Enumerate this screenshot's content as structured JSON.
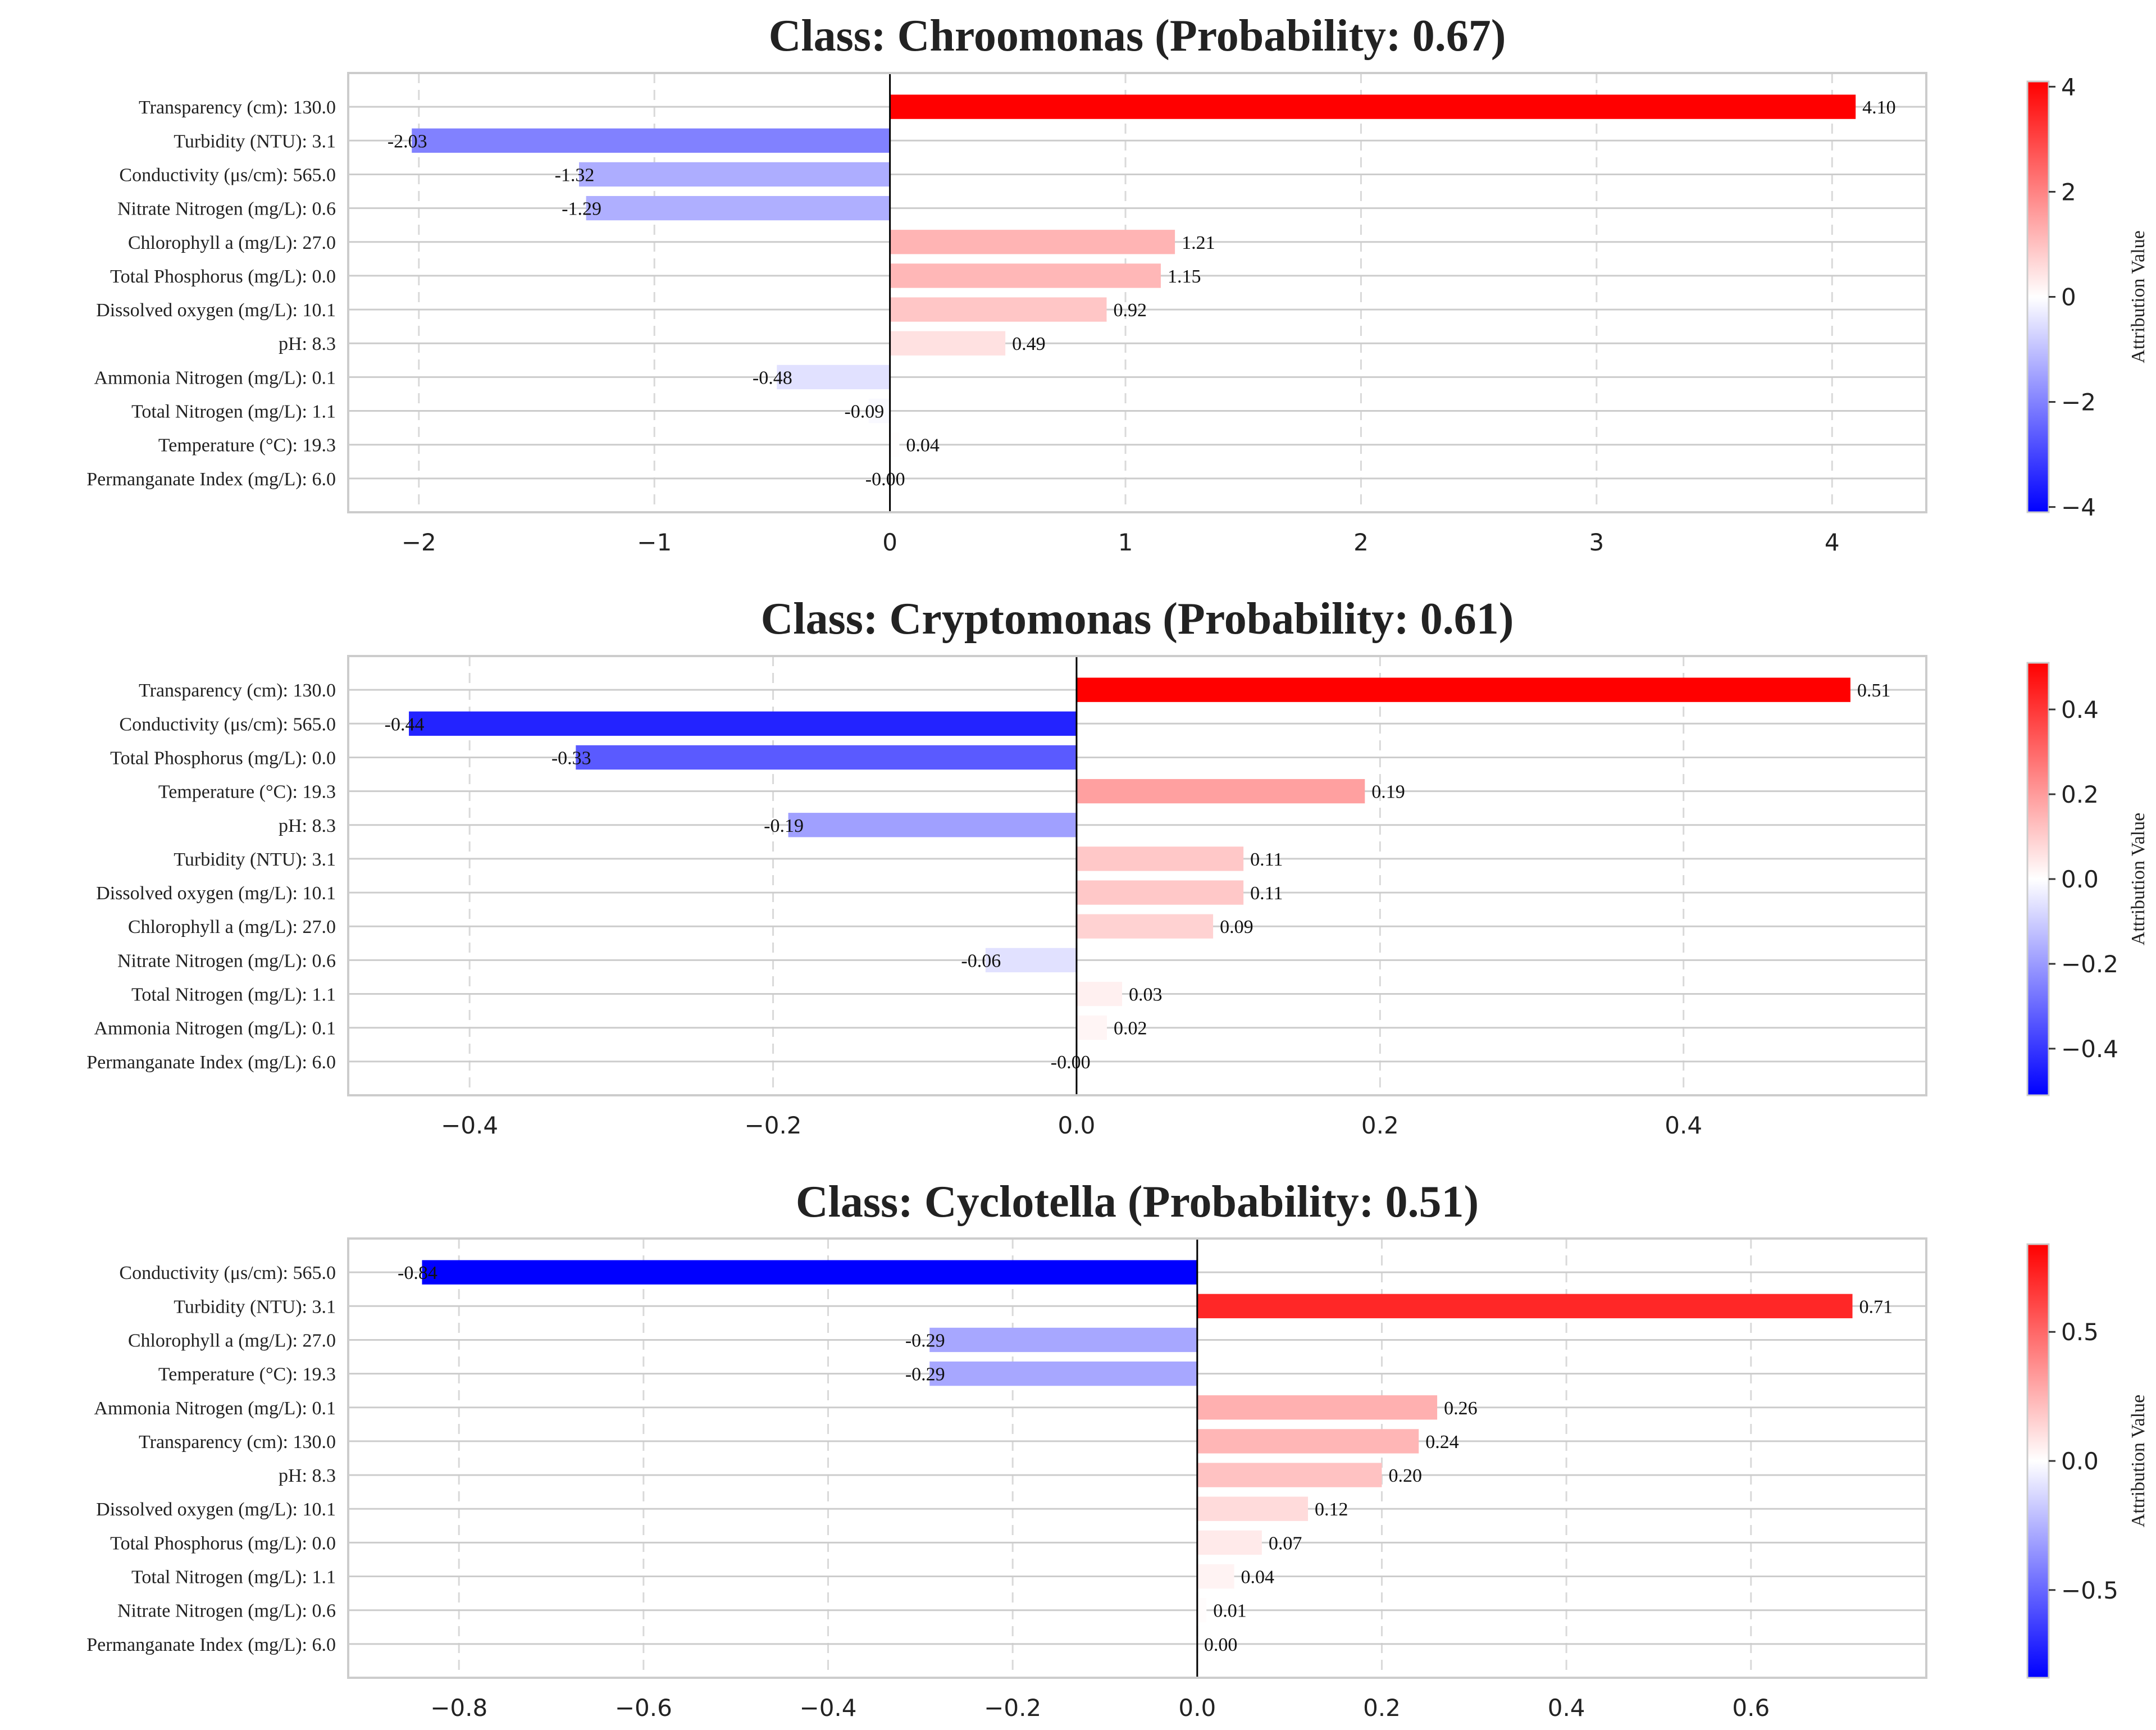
{
  "chart_data": [
    {
      "type": "bar",
      "orientation": "horizontal",
      "title": "Class: Chroomonas (Probability: 0.67)",
      "categories": [
        "Transparency (cm): 130.0",
        "Turbidity (NTU): 3.1",
        "Conductivity (μs/cm): 565.0",
        "Nitrate Nitrogen (mg/L): 0.6",
        "Chlorophyll a (mg/L): 27.0",
        "Total Phosphorus (mg/L): 0.0",
        "Dissolved oxygen (mg/L): 10.1",
        "pH: 8.3",
        "Ammonia Nitrogen (mg/L): 0.1",
        "Total Nitrogen (mg/L): 1.1",
        "Temperature (°C): 19.3",
        "Permanganate Index (mg/L): 6.0"
      ],
      "values": [
        4.1,
        -2.03,
        -1.32,
        -1.29,
        1.21,
        1.15,
        0.92,
        0.49,
        -0.48,
        -0.09,
        0.04,
        -0.001
      ],
      "value_labels": [
        "4.10",
        "-2.03",
        "-1.32",
        "-1.29",
        "1.21",
        "1.15",
        "0.92",
        "0.49",
        "-0.48",
        "-0.09",
        "0.04",
        "-0.00"
      ],
      "xlim": [
        -2.3,
        4.4
      ],
      "xticks": [
        -2,
        -1,
        0,
        1,
        2,
        3,
        4
      ],
      "xtick_labels": [
        "−2",
        "−1",
        "0",
        "1",
        "2",
        "3",
        "4"
      ],
      "color_range": [
        -4.1,
        4.1
      ],
      "colorbar_ticks": [
        4,
        2,
        0,
        -2,
        -4
      ],
      "colorbar_tick_labels": [
        "4",
        "2",
        "0",
        "−2",
        "−4"
      ],
      "colorbar_label": "Attribution Value",
      "grid": true
    },
    {
      "type": "bar",
      "orientation": "horizontal",
      "title": "Class: Cryptomonas (Probability: 0.61)",
      "categories": [
        "Transparency (cm): 130.0",
        "Conductivity (μs/cm): 565.0",
        "Total Phosphorus (mg/L): 0.0",
        "Temperature (°C): 19.3",
        "pH: 8.3",
        "Turbidity (NTU): 3.1",
        "Dissolved oxygen (mg/L): 10.1",
        "Chlorophyll a (mg/L): 27.0",
        "Nitrate Nitrogen (mg/L): 0.6",
        "Total Nitrogen (mg/L): 1.1",
        "Ammonia Nitrogen (mg/L): 0.1",
        "Permanganate Index (mg/L): 6.0"
      ],
      "values": [
        0.51,
        -0.44,
        -0.33,
        0.19,
        -0.19,
        0.11,
        0.11,
        0.09,
        -0.06,
        0.03,
        0.02,
        -0.001
      ],
      "value_labels": [
        "0.51",
        "-0.44",
        "-0.33",
        "0.19",
        "-0.19",
        "0.11",
        "0.11",
        "0.09",
        "-0.06",
        "0.03",
        "0.02",
        "-0.00"
      ],
      "xlim": [
        -0.48,
        0.56
      ],
      "xticks": [
        -0.4,
        -0.2,
        0.0,
        0.2,
        0.4
      ],
      "xtick_labels": [
        "−0.4",
        "−0.2",
        "0.0",
        "0.2",
        "0.4"
      ],
      "color_range": [
        -0.51,
        0.51
      ],
      "colorbar_ticks": [
        0.4,
        0.2,
        0.0,
        -0.2,
        -0.4
      ],
      "colorbar_tick_labels": [
        "0.4",
        "0.2",
        "0.0",
        "−0.2",
        "−0.4"
      ],
      "colorbar_label": "Attribution Value",
      "grid": true
    },
    {
      "type": "bar",
      "orientation": "horizontal",
      "title": "Class: Cyclotella (Probability: 0.51)",
      "categories": [
        "Conductivity (μs/cm): 565.0",
        "Turbidity (NTU): 3.1",
        "Chlorophyll a (mg/L): 27.0",
        "Temperature (°C): 19.3",
        "Ammonia Nitrogen (mg/L): 0.1",
        "Transparency (cm): 130.0",
        "pH: 8.3",
        "Dissolved oxygen (mg/L): 10.1",
        "Total Phosphorus (mg/L): 0.0",
        "Total Nitrogen (mg/L): 1.1",
        "Nitrate Nitrogen (mg/L): 0.6",
        "Permanganate Index (mg/L): 6.0"
      ],
      "values": [
        -0.84,
        0.71,
        -0.29,
        -0.29,
        0.26,
        0.24,
        0.2,
        0.12,
        0.07,
        0.04,
        0.01,
        0.0
      ],
      "value_labels": [
        "-0.84",
        "0.71",
        "-0.29",
        "-0.29",
        "0.26",
        "0.24",
        "0.20",
        "0.12",
        "0.07",
        "0.04",
        "0.01",
        "0.00"
      ],
      "xlim": [
        -0.92,
        0.79
      ],
      "xticks": [
        -0.8,
        -0.6,
        -0.4,
        -0.2,
        0.0,
        0.2,
        0.4,
        0.6
      ],
      "xtick_labels": [
        "−0.8",
        "−0.6",
        "−0.4",
        "−0.2",
        "0.0",
        "0.2",
        "0.4",
        "0.6"
      ],
      "color_range": [
        -0.84,
        0.84
      ],
      "colorbar_ticks": [
        0.5,
        0.0,
        -0.5
      ],
      "colorbar_tick_labels": [
        "0.5",
        "0.0",
        "−0.5"
      ],
      "colorbar_label": "Attribution Value",
      "grid": true
    }
  ],
  "colors": {
    "negative": "#0000ff",
    "neutral": "#ffffff",
    "positive": "#ff0000",
    "frame": "#cccccc",
    "grid": "#d9d9d9",
    "zero_line": "#000000"
  }
}
